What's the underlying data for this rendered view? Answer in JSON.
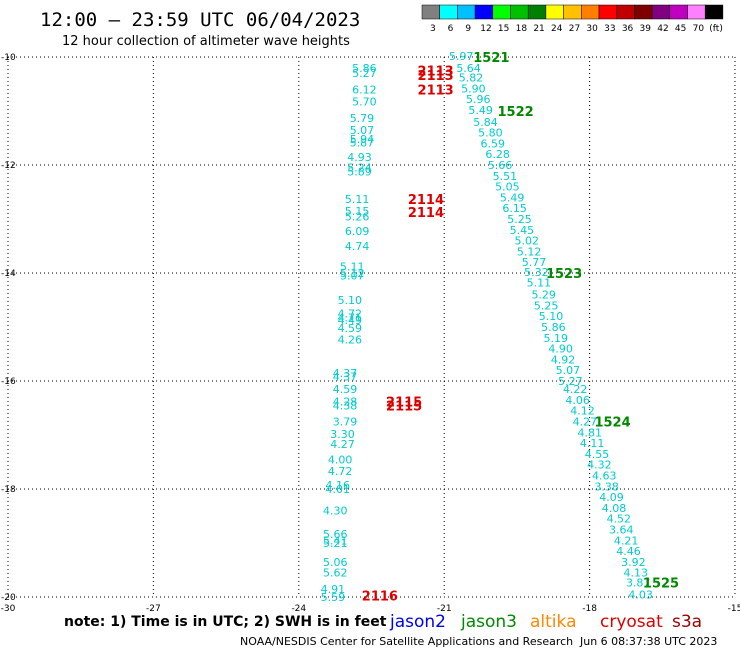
{
  "header": {
    "title": "12:00 – 23:59 UTC 06/04/2023",
    "subtitle": "12 hour collection of altimeter wave heights"
  },
  "legend": {
    "colors": [
      "#808080",
      "#00ffff",
      "#00c0ff",
      "#0000ff",
      "#00ff00",
      "#00c000",
      "#008000",
      "#ffff00",
      "#ffc000",
      "#ff8000",
      "#ff0000",
      "#c00000",
      "#800000",
      "#800080",
      "#c000c0",
      "#ff80ff",
      "#000000"
    ],
    "labels": [
      "3",
      "6",
      "9",
      "12",
      "15",
      "18",
      "21",
      "24",
      "27",
      "30",
      "33",
      "36",
      "39",
      "42",
      "45",
      "70",
      "(ft)"
    ]
  },
  "map": {
    "lon_range": [
      -30,
      -15
    ],
    "lat_range": [
      -20,
      -10
    ],
    "x_ticks": [
      "-30",
      "-27",
      "-24",
      "-21",
      "-18",
      "-15"
    ],
    "x_tick_values": [
      -30,
      -27,
      -24,
      -21,
      -18,
      -15
    ],
    "y_ticks": [
      "-10",
      "-12",
      "-14",
      "-16",
      "-18",
      "-20"
    ],
    "y_tick_values": [
      -10,
      -12,
      -14,
      -16,
      -18,
      -20
    ]
  },
  "colors": {
    "cyan": "#00cccc",
    "red": "#dd0000",
    "green": "#008800",
    "blue": "#0000ee",
    "orange": "#ff8800",
    "darkred": "#990000"
  },
  "passes": [
    {
      "label": "2113",
      "color": "red",
      "lon": -21.55,
      "lat": -10.25
    },
    {
      "label": "2113",
      "color": "red",
      "lon": -21.55,
      "lat": -10.33
    },
    {
      "label": "2113",
      "color": "red",
      "lon": -21.55,
      "lat": -10.6
    },
    {
      "label": "2114",
      "color": "red",
      "lon": -21.75,
      "lat": -12.63
    },
    {
      "label": "2114",
      "color": "red",
      "lon": -21.75,
      "lat": -12.87
    },
    {
      "label": "2115",
      "color": "red",
      "lon": -22.2,
      "lat": -16.38
    },
    {
      "label": "2115",
      "color": "red",
      "lon": -22.2,
      "lat": -16.45
    },
    {
      "label": "2116",
      "color": "red",
      "lon": -22.7,
      "lat": -19.97
    },
    {
      "label": "1521",
      "color": "green",
      "lon": -20.4,
      "lat": -10.0
    },
    {
      "label": "1522",
      "color": "green",
      "lon": -19.9,
      "lat": -11.0
    },
    {
      "label": "1523",
      "color": "green",
      "lon": -18.9,
      "lat": -14.0
    },
    {
      "label": "1524",
      "color": "green",
      "lon": -17.9,
      "lat": -16.75
    },
    {
      "label": "1525",
      "color": "green",
      "lon": -16.9,
      "lat": -19.73
    }
  ],
  "waves": [
    {
      "v": "5.86",
      "lon": -22.9,
      "lat": -10.2
    },
    {
      "v": "5.27",
      "lon": -22.9,
      "lat": -10.3
    },
    {
      "v": "6.12",
      "lon": -22.9,
      "lat": -10.6
    },
    {
      "v": "5.70",
      "lon": -22.9,
      "lat": -10.82
    },
    {
      "v": "5.79",
      "lon": -22.95,
      "lat": -11.13
    },
    {
      "v": "5.07",
      "lon": -22.95,
      "lat": -11.35
    },
    {
      "v": "5.94",
      "lon": -22.95,
      "lat": -11.52
    },
    {
      "v": "5.87",
      "lon": -22.95,
      "lat": -11.58
    },
    {
      "v": "4.93",
      "lon": -23.0,
      "lat": -11.85
    },
    {
      "v": "5.24",
      "lon": -23.0,
      "lat": -12.05
    },
    {
      "v": "5.89",
      "lon": -23.0,
      "lat": -12.12
    },
    {
      "v": "5.11",
      "lon": -23.05,
      "lat": -12.63
    },
    {
      "v": "5.15",
      "lon": -23.05,
      "lat": -12.85
    },
    {
      "v": "5.26",
      "lon": -23.05,
      "lat": -12.95
    },
    {
      "v": "6.09",
      "lon": -23.05,
      "lat": -13.22
    },
    {
      "v": "4.74",
      "lon": -23.05,
      "lat": -13.5
    },
    {
      "v": "5.11",
      "lon": -23.15,
      "lat": -13.88
    },
    {
      "v": "5.12",
      "lon": -23.15,
      "lat": -14.0
    },
    {
      "v": "5.07",
      "lon": -23.15,
      "lat": -14.05
    },
    {
      "v": "5.10",
      "lon": -23.2,
      "lat": -14.5
    },
    {
      "v": "4.72",
      "lon": -23.2,
      "lat": -14.75
    },
    {
      "v": "4.71",
      "lon": -23.2,
      "lat": -14.82
    },
    {
      "v": "4.49",
      "lon": -23.2,
      "lat": -14.87
    },
    {
      "v": "4.59",
      "lon": -23.2,
      "lat": -15.02
    },
    {
      "v": "4.26",
      "lon": -23.2,
      "lat": -15.23
    },
    {
      "v": "4.37",
      "lon": -23.3,
      "lat": -15.85
    },
    {
      "v": "4.37",
      "lon": -23.3,
      "lat": -15.92
    },
    {
      "v": "4.59",
      "lon": -23.3,
      "lat": -16.15
    },
    {
      "v": "4.28",
      "lon": -23.3,
      "lat": -16.38
    },
    {
      "v": "4.38",
      "lon": -23.3,
      "lat": -16.45
    },
    {
      "v": "3.79",
      "lon": -23.3,
      "lat": -16.75
    },
    {
      "v": "3.30",
      "lon": -23.35,
      "lat": -16.98
    },
    {
      "v": "4.27",
      "lon": -23.35,
      "lat": -17.17
    },
    {
      "v": "4.00",
      "lon": -23.4,
      "lat": -17.45
    },
    {
      "v": "4.72",
      "lon": -23.4,
      "lat": -17.67
    },
    {
      "v": "4.16",
      "lon": -23.45,
      "lat": -17.93
    },
    {
      "v": "4.01",
      "lon": -23.45,
      "lat": -18.0
    },
    {
      "v": "4.30",
      "lon": -23.5,
      "lat": -18.4
    },
    {
      "v": "5.66",
      "lon": -23.5,
      "lat": -18.83
    },
    {
      "v": "5.41",
      "lon": -23.5,
      "lat": -18.95
    },
    {
      "v": "5.21",
      "lon": -23.5,
      "lat": -19.0
    },
    {
      "v": "5.06",
      "lon": -23.5,
      "lat": -19.35
    },
    {
      "v": "5.62",
      "lon": -23.5,
      "lat": -19.55
    },
    {
      "v": "4.91",
      "lon": -23.55,
      "lat": -19.85
    },
    {
      "v": "5.59",
      "lon": -23.55,
      "lat": -20.0
    },
    {
      "v": "5.97",
      "lon": -20.9,
      "lat": -9.98
    },
    {
      "v": "5.64",
      "lon": -20.75,
      "lat": -10.2
    },
    {
      "v": "5.82",
      "lon": -20.7,
      "lat": -10.38
    },
    {
      "v": "5.90",
      "lon": -20.65,
      "lat": -10.58
    },
    {
      "v": "5.96",
      "lon": -20.55,
      "lat": -10.78
    },
    {
      "v": "5.49",
      "lon": -20.5,
      "lat": -10.98
    },
    {
      "v": "5.84",
      "lon": -20.4,
      "lat": -11.2
    },
    {
      "v": "5.80",
      "lon": -20.3,
      "lat": -11.4
    },
    {
      "v": "6.59",
      "lon": -20.25,
      "lat": -11.6
    },
    {
      "v": "6.28",
      "lon": -20.15,
      "lat": -11.8
    },
    {
      "v": "5.66",
      "lon": -20.1,
      "lat": -12.0
    },
    {
      "v": "5.51",
      "lon": -20.0,
      "lat": -12.2
    },
    {
      "v": "5.05",
      "lon": -19.95,
      "lat": -12.4
    },
    {
      "v": "5.49",
      "lon": -19.85,
      "lat": -12.6
    },
    {
      "v": "6.15",
      "lon": -19.8,
      "lat": -12.8
    },
    {
      "v": "5.25",
      "lon": -19.7,
      "lat": -13.0
    },
    {
      "v": "5.45",
      "lon": -19.65,
      "lat": -13.2
    },
    {
      "v": "5.02",
      "lon": -19.55,
      "lat": -13.4
    },
    {
      "v": "5.12",
      "lon": -19.5,
      "lat": -13.6
    },
    {
      "v": "5.77",
      "lon": -19.4,
      "lat": -13.8
    },
    {
      "v": "5.32",
      "lon": -19.35,
      "lat": -13.98
    },
    {
      "v": "5.11",
      "lon": -19.3,
      "lat": -14.18
    },
    {
      "v": "5.29",
      "lon": -19.2,
      "lat": -14.4
    },
    {
      "v": "5.25",
      "lon": -19.15,
      "lat": -14.6
    },
    {
      "v": "5.10",
      "lon": -19.05,
      "lat": -14.8
    },
    {
      "v": "5.86",
      "lon": -19.0,
      "lat": -15.0
    },
    {
      "v": "5.19",
      "lon": -18.95,
      "lat": -15.2
    },
    {
      "v": "4.90",
      "lon": -18.85,
      "lat": -15.4
    },
    {
      "v": "4.92",
      "lon": -18.8,
      "lat": -15.6
    },
    {
      "v": "5.07",
      "lon": -18.7,
      "lat": -15.8
    },
    {
      "v": "5.27",
      "lon": -18.65,
      "lat": -16.0
    },
    {
      "v": "4.22",
      "lon": -18.55,
      "lat": -16.15
    },
    {
      "v": "4.06",
      "lon": -18.5,
      "lat": -16.35
    },
    {
      "v": "4.12",
      "lon": -18.4,
      "lat": -16.55
    },
    {
      "v": "4.27",
      "lon": -18.35,
      "lat": -16.75
    },
    {
      "v": "4.81",
      "lon": -18.25,
      "lat": -16.95
    },
    {
      "v": "4.11",
      "lon": -18.2,
      "lat": -17.15
    },
    {
      "v": "4.55",
      "lon": -18.1,
      "lat": -17.35
    },
    {
      "v": "4.32",
      "lon": -18.05,
      "lat": -17.55
    },
    {
      "v": "4.63",
      "lon": -17.95,
      "lat": -17.75
    },
    {
      "v": "3.38",
      "lon": -17.9,
      "lat": -17.95
    },
    {
      "v": "4.09",
      "lon": -17.8,
      "lat": -18.15
    },
    {
      "v": "4.08",
      "lon": -17.75,
      "lat": -18.35
    },
    {
      "v": "4.52",
      "lon": -17.65,
      "lat": -18.55
    },
    {
      "v": "3.64",
      "lon": -17.6,
      "lat": -18.75
    },
    {
      "v": "4.21",
      "lon": -17.5,
      "lat": -18.95
    },
    {
      "v": "4.46",
      "lon": -17.45,
      "lat": -19.15
    },
    {
      "v": "3.92",
      "lon": -17.35,
      "lat": -19.35
    },
    {
      "v": "4.13",
      "lon": -17.3,
      "lat": -19.55
    },
    {
      "v": "3.87",
      "lon": -17.25,
      "lat": -19.73
    },
    {
      "v": "4.03",
      "lon": -17.2,
      "lat": -19.95
    }
  ],
  "footer": {
    "note": "note:  1) Time is in UTC; 2) SWH is in feet",
    "satellites": [
      {
        "name": "jason2",
        "color": "blue"
      },
      {
        "name": "jason3",
        "color": "green"
      },
      {
        "name": "altika",
        "color": "orange"
      },
      {
        "name": "cryosat",
        "color": "red"
      },
      {
        "name": "s3a",
        "color": "darkred"
      }
    ],
    "credit": "NOAA/NESDIS Center for Satellite Applications and Research",
    "timestamp": "Jun  6 08:37:38 UTC 2023"
  }
}
